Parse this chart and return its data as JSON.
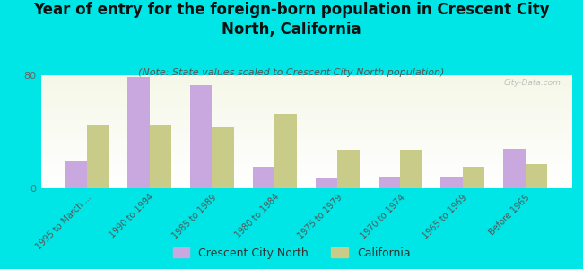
{
  "title": "Year of entry for the foreign-born population in Crescent City\nNorth, California",
  "subtitle": "(Note: State values scaled to Crescent City North population)",
  "categories": [
    "1995 to March ...",
    "1990 to 1994",
    "1985 to 1989",
    "1980 to 1984",
    "1975 to 1979",
    "1970 to 1974",
    "1965 to 1969",
    "Before 1965"
  ],
  "city_values": [
    20,
    79,
    73,
    15,
    7,
    8,
    8,
    28
  ],
  "state_values": [
    45,
    45,
    43,
    53,
    27,
    27,
    15,
    17
  ],
  "city_color": "#c9a8e0",
  "state_color": "#c8cc88",
  "background_color": "#00e5e5",
  "ylim": [
    0,
    80
  ],
  "yticks": [
    0,
    80
  ],
  "watermark": "City-Data.com",
  "legend_city": "Crescent City North",
  "legend_state": "California",
  "title_fontsize": 12,
  "subtitle_fontsize": 8,
  "bar_width": 0.35
}
